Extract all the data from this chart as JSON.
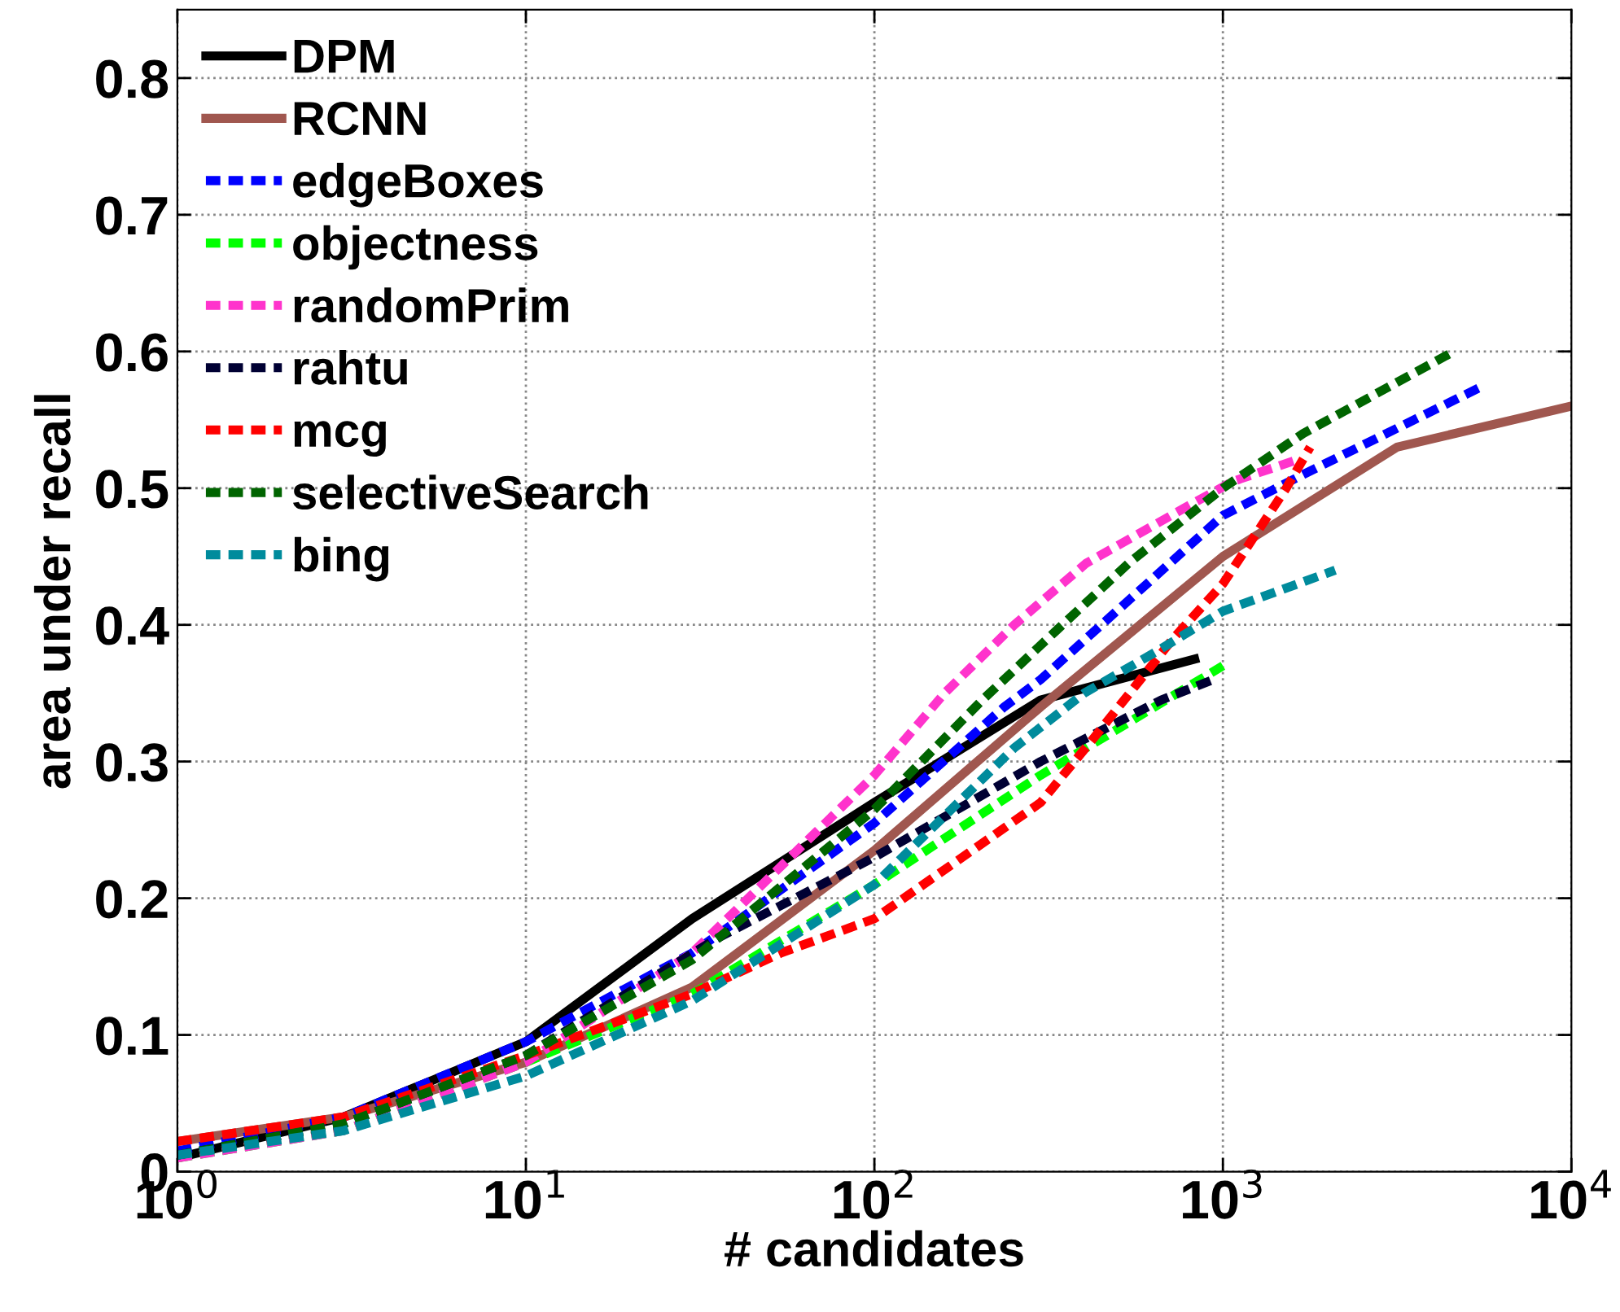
{
  "chart_data": {
    "type": "line",
    "xlabel": "# candidates",
    "ylabel": "area under recall",
    "log": "x",
    "grid": true,
    "legend": "top left",
    "xlim": [
      1,
      10000
    ],
    "xticks": [
      {
        "value": 1,
        "label": "10$^{0}$"
      },
      {
        "value": 10,
        "label": "10$^{1}$"
      },
      {
        "value": 100,
        "label": "10$^{2}$"
      },
      {
        "value": 1000,
        "label": "10$^{3}$"
      },
      {
        "value": 10000,
        "label": "10$^{4}$"
      }
    ],
    "ylim": [
      0,
      0.85
    ],
    "yticks": [
      0,
      0.1,
      0.2,
      0.3,
      0.4,
      0.5,
      0.6,
      0.7,
      0.8
    ],
    "series": [
      {
        "name": "DPM",
        "color": "#000000",
        "line_style": "solid",
        "x": [
          1,
          3,
          10,
          30,
          100,
          300,
          830
        ],
        "values": [
          0.01,
          0.04,
          0.095,
          0.185,
          0.27,
          0.345,
          0.375
        ]
      },
      {
        "name": "RCNN",
        "color": "#a0574f",
        "line_style": "solid",
        "x": [
          1,
          3,
          10,
          30,
          100,
          300,
          1000,
          3160,
          10000
        ],
        "values": [
          0.022,
          0.04,
          0.08,
          0.135,
          0.235,
          0.34,
          0.45,
          0.53,
          0.56
        ]
      },
      {
        "name": "edgeBoxes",
        "color": "#0000ff",
        "line_style": "dashed",
        "x": [
          1,
          3,
          10,
          30,
          100,
          236,
          300,
          1000,
          1700,
          5600
        ],
        "values": [
          0.015,
          0.04,
          0.095,
          0.16,
          0.255,
          0.34,
          0.36,
          0.48,
          0.51,
          0.575
        ]
      },
      {
        "name": "objectness",
        "color": "#00ff00",
        "line_style": "dashed",
        "x": [
          1,
          3,
          10,
          30,
          100,
          300,
          1000
        ],
        "values": [
          0.01,
          0.03,
          0.08,
          0.13,
          0.21,
          0.29,
          0.37
        ]
      },
      {
        "name": "randomPrim",
        "color": "#ff33cc",
        "line_style": "dashed",
        "x": [
          1,
          3,
          10,
          30,
          100,
          159,
          252,
          405,
          770,
          1070,
          1600
        ],
        "values": [
          0.01,
          0.03,
          0.08,
          0.16,
          0.29,
          0.35,
          0.4,
          0.445,
          0.485,
          0.505,
          0.52
        ]
      },
      {
        "name": "rahtu",
        "color": "#000033",
        "line_style": "dashed",
        "x": [
          1,
          3,
          10,
          35,
          100,
          300,
          665,
          940
        ],
        "values": [
          0.012,
          0.035,
          0.085,
          0.17,
          0.23,
          0.3,
          0.345,
          0.36
        ]
      },
      {
        "name": "mcg",
        "color": "#ff0000",
        "line_style": "dashed",
        "x": [
          1,
          3,
          10,
          30,
          54,
          100,
          300,
          435,
          720,
          1000,
          1520,
          1780
        ],
        "values": [
          0.022,
          0.04,
          0.085,
          0.13,
          0.16,
          0.185,
          0.27,
          0.32,
          0.39,
          0.43,
          0.5,
          0.53
        ]
      },
      {
        "name": "selectiveSearch",
        "color": "#006400",
        "line_style": "dashed",
        "x": [
          1,
          3,
          10,
          30,
          100,
          204,
          330,
          536,
          1000,
          1700,
          4600
        ],
        "values": [
          0.012,
          0.035,
          0.085,
          0.155,
          0.265,
          0.345,
          0.395,
          0.445,
          0.5,
          0.54,
          0.6
        ]
      },
      {
        "name": "bing",
        "color": "#008b9c",
        "line_style": "dashed",
        "x": [
          1,
          3,
          10,
          30,
          100,
          252,
          400,
          640,
          1000,
          2100
        ],
        "values": [
          0.012,
          0.03,
          0.07,
          0.125,
          0.21,
          0.31,
          0.35,
          0.38,
          0.41,
          0.44
        ]
      }
    ]
  }
}
